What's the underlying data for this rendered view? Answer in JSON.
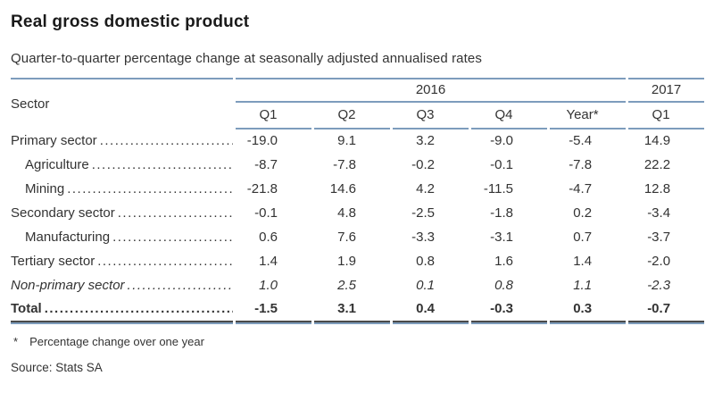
{
  "title": "Real gross domestic product",
  "subtitle": "Quarter-to-quarter percentage change at seasonally adjusted annualised rates",
  "table": {
    "sector_header": "Sector",
    "year_groups": [
      {
        "label": "2016",
        "span": 5
      },
      {
        "label": "2017",
        "span": 1
      }
    ],
    "columns": [
      "Q1",
      "Q2",
      "Q3",
      "Q4",
      "Year*",
      "Q1"
    ],
    "rows": [
      {
        "label": "Primary sector",
        "indent": 0,
        "style": "normal",
        "values": [
          "-19.0",
          "9.1",
          "3.2",
          "-9.0",
          "-5.4",
          "14.9"
        ]
      },
      {
        "label": "Agriculture",
        "indent": 1,
        "style": "normal",
        "values": [
          "-8.7",
          "-7.8",
          "-0.2",
          "-0.1",
          "-7.8",
          "22.2"
        ]
      },
      {
        "label": "Mining",
        "indent": 1,
        "style": "normal",
        "values": [
          "-21.8",
          "14.6",
          "4.2",
          "-11.5",
          "-4.7",
          "12.8"
        ]
      },
      {
        "label": "Secondary sector",
        "indent": 0,
        "style": "normal",
        "values": [
          "-0.1",
          "4.8",
          "-2.5",
          "-1.8",
          "0.2",
          "-3.4"
        ]
      },
      {
        "label": "Manufacturing",
        "indent": 1,
        "style": "normal",
        "values": [
          "0.6",
          "7.6",
          "-3.3",
          "-3.1",
          "0.7",
          "-3.7"
        ]
      },
      {
        "label": "Tertiary sector",
        "indent": 0,
        "style": "normal",
        "values": [
          "1.4",
          "1.9",
          "0.8",
          "1.6",
          "1.4",
          "-2.0"
        ]
      },
      {
        "label": "Non-primary sector",
        "indent": 0,
        "style": "italic",
        "values": [
          "1.0",
          "2.5",
          "0.1",
          "0.8",
          "1.1",
          "-2.3"
        ]
      },
      {
        "label": "Total",
        "indent": 0,
        "style": "total",
        "values": [
          "-1.5",
          "3.1",
          "0.4",
          "-0.3",
          "0.3",
          "-0.7"
        ]
      }
    ]
  },
  "footnote": {
    "marker": "*",
    "text": "Percentage change over one year"
  },
  "source": "Source: Stats SA",
  "colors": {
    "rule_blue": "#7d9cbc",
    "rule_dark": "#4a4a4a",
    "text": "#333333",
    "title": "#1a1a1a"
  },
  "chart_data": {
    "type": "table",
    "title": "Real gross domestic product",
    "subtitle": "Quarter-to-quarter percentage change at seasonally adjusted annualised rates",
    "column_groups": [
      "2016",
      "2016",
      "2016",
      "2016",
      "2016",
      "2017"
    ],
    "columns": [
      "Q1",
      "Q2",
      "Q3",
      "Q4",
      "Year*",
      "Q1"
    ],
    "series": [
      {
        "name": "Primary sector",
        "values": [
          -19.0,
          9.1,
          3.2,
          -9.0,
          -5.4,
          14.9
        ]
      },
      {
        "name": "Agriculture",
        "values": [
          -8.7,
          -7.8,
          -0.2,
          -0.1,
          -7.8,
          22.2
        ]
      },
      {
        "name": "Mining",
        "values": [
          -21.8,
          14.6,
          4.2,
          -11.5,
          -4.7,
          12.8
        ]
      },
      {
        "name": "Secondary sector",
        "values": [
          -0.1,
          4.8,
          -2.5,
          -1.8,
          0.2,
          -3.4
        ]
      },
      {
        "name": "Manufacturing",
        "values": [
          0.6,
          7.6,
          -3.3,
          -3.1,
          0.7,
          -3.7
        ]
      },
      {
        "name": "Tertiary sector",
        "values": [
          1.4,
          1.9,
          0.8,
          1.6,
          1.4,
          -2.0
        ]
      },
      {
        "name": "Non-primary sector",
        "values": [
          1.0,
          2.5,
          0.1,
          0.8,
          1.1,
          -2.3
        ]
      },
      {
        "name": "Total",
        "values": [
          -1.5,
          3.1,
          0.4,
          -0.3,
          0.3,
          -0.7
        ]
      }
    ]
  }
}
